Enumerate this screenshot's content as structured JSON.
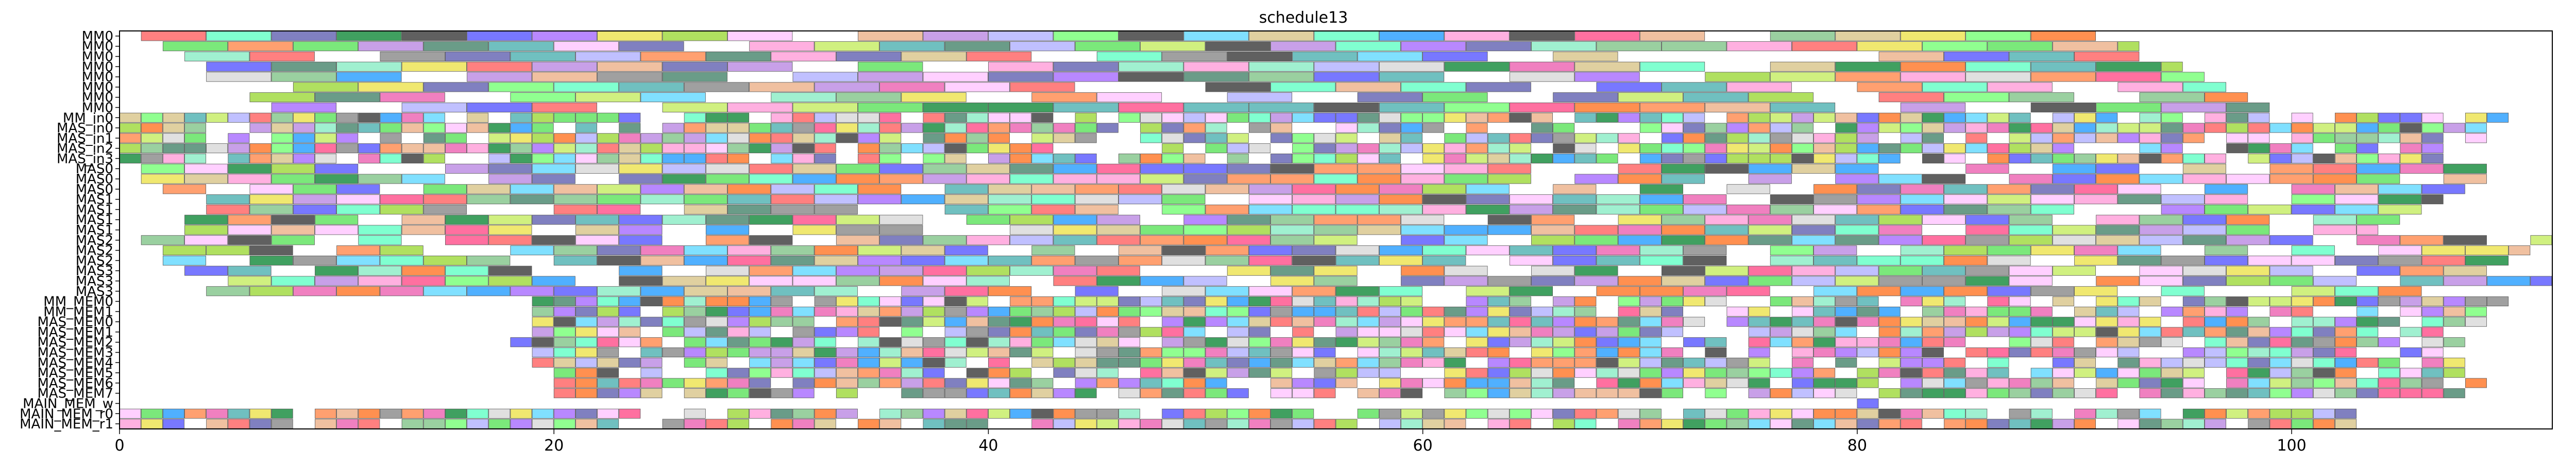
{
  "chart_data": {
    "type": "gantt",
    "title": "schedule13",
    "xlabel": "",
    "ylabel": "",
    "xlim": [
      0,
      112
    ],
    "x_ticks": [
      0,
      20,
      40,
      60,
      80,
      100
    ],
    "grid": false,
    "legend": false,
    "rows": [
      {
        "label": "MM0",
        "start": 1,
        "end": 91,
        "slot": 3.0
      },
      {
        "label": "MM0",
        "start": 2,
        "end": 93,
        "slot": 3.0
      },
      {
        "label": "MM0",
        "start": 3,
        "end": 94,
        "slot": 3.0
      },
      {
        "label": "MM0",
        "start": 4,
        "end": 95,
        "slot": 3.0
      },
      {
        "label": "MM0",
        "start": 4,
        "end": 96,
        "slot": 3.0
      },
      {
        "label": "MM0",
        "start": 5,
        "end": 97,
        "slot": 3.0
      },
      {
        "label": "MM0",
        "start": 6,
        "end": 98,
        "slot": 3.0
      },
      {
        "label": "MM0",
        "start": 7,
        "end": 99,
        "slot": 3.0
      },
      {
        "label": "MM_in0",
        "start": 0,
        "end": 110,
        "slot": 1.0
      },
      {
        "label": "MAS_in0",
        "start": 0,
        "end": 110,
        "slot": 1.0
      },
      {
        "label": "MAS_in1",
        "start": 0,
        "end": 109,
        "slot": 1.0
      },
      {
        "label": "MAS_in2",
        "start": 0,
        "end": 108,
        "slot": 1.0
      },
      {
        "label": "MAS_in3",
        "start": 0,
        "end": 107,
        "slot": 1.0
      },
      {
        "label": "MAS0",
        "start": 1,
        "end": 110,
        "slot": 2.0
      },
      {
        "label": "MAS0",
        "start": 1,
        "end": 109,
        "slot": 2.0
      },
      {
        "label": "MAS0",
        "start": 2,
        "end": 108,
        "slot": 2.0
      },
      {
        "label": "MAS1",
        "start": 2,
        "end": 107,
        "slot": 2.0
      },
      {
        "label": "MAS1",
        "start": 2,
        "end": 106,
        "slot": 2.0
      },
      {
        "label": "MAS1",
        "start": 3,
        "end": 105,
        "slot": 2.0
      },
      {
        "label": "MAS1",
        "start": 3,
        "end": 104,
        "slot": 2.0
      },
      {
        "label": "MAS2",
        "start": 1,
        "end": 112,
        "slot": 2.0
      },
      {
        "label": "MAS2",
        "start": 2,
        "end": 111,
        "slot": 2.0
      },
      {
        "label": "MAS2",
        "start": 2,
        "end": 110,
        "slot": 2.0
      },
      {
        "label": "MAS3",
        "start": 3,
        "end": 109,
        "slot": 2.0
      },
      {
        "label": "MAS3",
        "start": 3,
        "end": 112,
        "slot": 2.0
      },
      {
        "label": "MAS3",
        "start": 4,
        "end": 108,
        "slot": 2.0
      },
      {
        "label": "MM_MEM0",
        "start": 19,
        "end": 110,
        "slot": 1.0
      },
      {
        "label": "MM_MEM1",
        "start": 19,
        "end": 109,
        "slot": 1.0
      },
      {
        "label": "MAS_MEM0",
        "start": 19,
        "end": 109,
        "slot": 1.0
      },
      {
        "label": "MAS_MEM1",
        "start": 19,
        "end": 108,
        "slot": 1.0
      },
      {
        "label": "MAS_MEM2",
        "start": 18,
        "end": 108,
        "slot": 1.0
      },
      {
        "label": "MAS_MEM3",
        "start": 19,
        "end": 107,
        "slot": 1.0
      },
      {
        "label": "MAS_MEM4",
        "start": 19,
        "end": 108,
        "slot": 1.0
      },
      {
        "label": "MAS_MEM5",
        "start": 20,
        "end": 109,
        "slot": 1.0
      },
      {
        "label": "MAS_MEM6",
        "start": 20,
        "end": 109,
        "slot": 1.0
      },
      {
        "label": "MAS_MEM7",
        "start": 20,
        "end": 108,
        "slot": 1.0
      },
      {
        "label": "MAIN_MEM_w",
        "start": 80,
        "end": 81,
        "slot": 1.0
      },
      {
        "label": "MAIN_MEM_r0",
        "start": 0,
        "end": 103,
        "slot": 1.0
      },
      {
        "label": "MAIN_MEM_r1",
        "start": 0,
        "end": 103,
        "slot": 1.0
      }
    ]
  },
  "palette": [
    "#7be87b",
    "#f080c0",
    "#9ad0a0",
    "#ffa070",
    "#80e0ff",
    "#b888ff",
    "#6a9c88",
    "#f0e870",
    "#c8a0e8",
    "#ff8080",
    "#7878ff",
    "#e0d0a0",
    "#90ff90",
    "#ffb0e0",
    "#70c0c0",
    "#a0a0a0",
    "#ff70a0",
    "#a0f0d0",
    "#e0e0e0",
    "#d0f080",
    "#8080c0",
    "#f0c0a0",
    "#50b0ff",
    "#b0e060",
    "#606060",
    "#ffd0ff",
    "#40a060",
    "#c0c0ff",
    "#ff9050",
    "#80ffd0"
  ]
}
